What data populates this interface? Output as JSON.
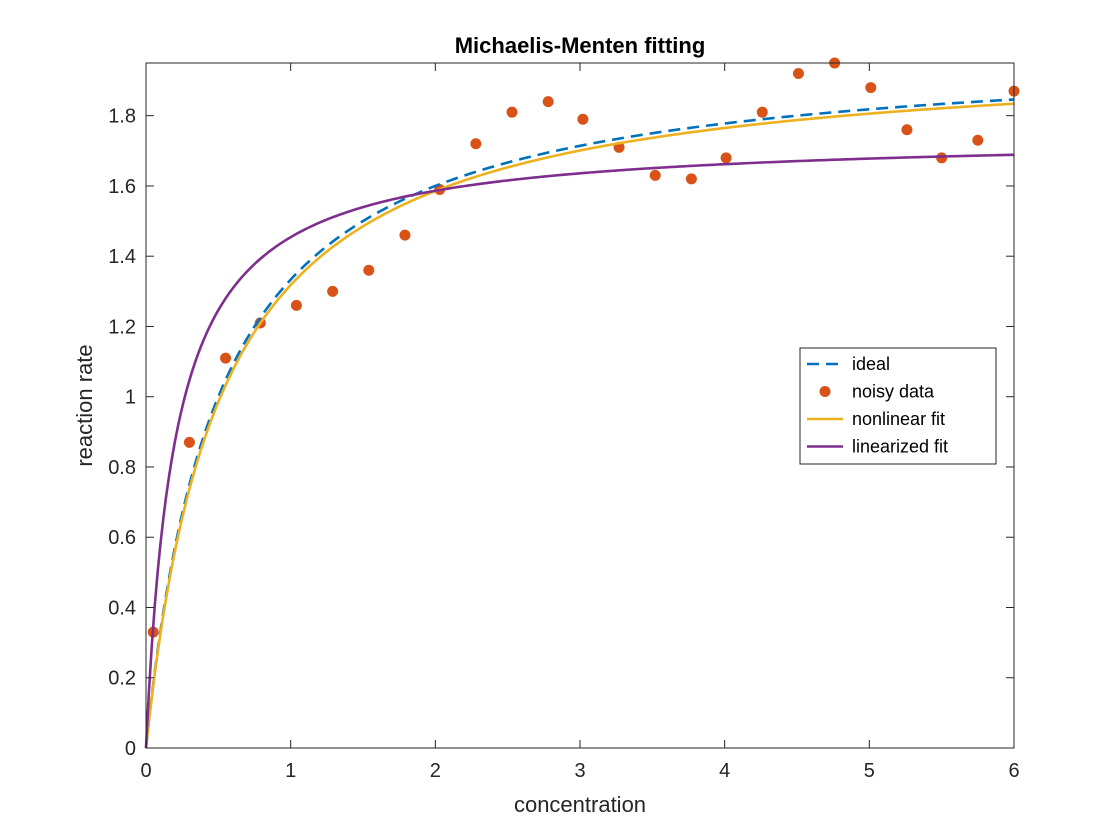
{
  "chart_data": {
    "type": "line",
    "title": "Michaelis-Menten fitting",
    "xlabel": "concentration",
    "ylabel": "reaction rate",
    "xlim": [
      0,
      6
    ],
    "ylim": [
      0,
      1.95
    ],
    "xticks": [
      0,
      1,
      2,
      3,
      4,
      5,
      6
    ],
    "xtick_labels": [
      "0",
      "1",
      "2",
      "3",
      "4",
      "5",
      "6"
    ],
    "yticks": [
      0,
      0.2,
      0.4,
      0.6,
      0.8,
      1,
      1.2,
      1.4,
      1.6,
      1.8
    ],
    "ytick_labels": [
      "0",
      "0.2",
      "0.4",
      "0.6",
      "0.8",
      "1",
      "1.2",
      "1.4",
      "1.6",
      "1.8"
    ],
    "grid": false,
    "legend_position": "right",
    "series": [
      {
        "name": "ideal",
        "kind": "line",
        "style": "dashed",
        "color": "#0072BD",
        "model": "michaelis-menten",
        "vmax": 2,
        "km": 0.5
      },
      {
        "name": "noisy data",
        "kind": "scatter",
        "color": "#D95319",
        "x": [
          0.05,
          0.3,
          0.55,
          0.79,
          1.04,
          1.29,
          1.54,
          1.79,
          2.03,
          2.28,
          2.53,
          2.78,
          3.02,
          3.27,
          3.52,
          3.77,
          4.01,
          4.26,
          4.51,
          4.76,
          5.01,
          5.26,
          5.5,
          5.75,
          6.0
        ],
        "y": [
          0.33,
          0.87,
          1.11,
          1.21,
          1.26,
          1.3,
          1.36,
          1.46,
          1.59,
          1.72,
          1.81,
          1.84,
          1.79,
          1.71,
          1.63,
          1.62,
          1.68,
          1.81,
          1.92,
          1.95,
          1.88,
          1.76,
          1.68,
          1.73,
          1.87
        ]
      },
      {
        "name": "nonlinear fit",
        "kind": "line",
        "style": "solid",
        "color": "#EDB120",
        "model": "michaelis-menten",
        "vmax": 1.99,
        "km": 0.51
      },
      {
        "name": "linearized fit",
        "kind": "line",
        "style": "solid",
        "color": "#7E2F8E",
        "model": "michaelis-menten",
        "vmax": 1.745,
        "km": 0.2
      }
    ]
  }
}
